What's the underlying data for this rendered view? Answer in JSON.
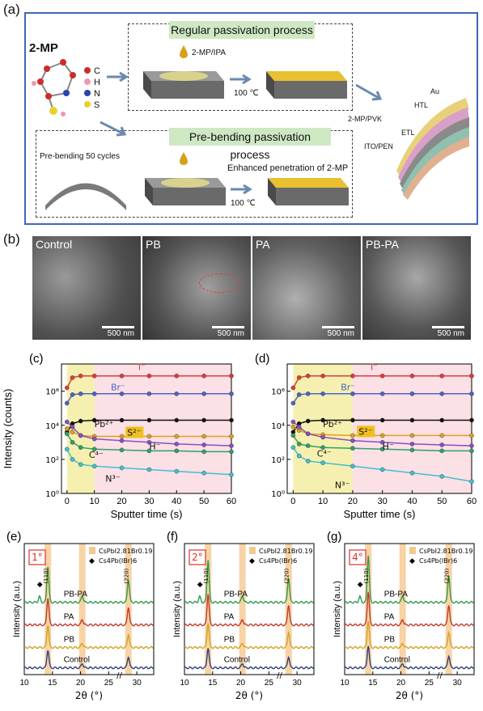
{
  "panel_a": {
    "label": "(a)",
    "molecule_name": "2-MP",
    "legend": [
      "C",
      "H",
      "N",
      "S"
    ],
    "regular_title": "Regular passivation process",
    "regular_drop_label": "2-MP/IPA",
    "regular_temp": "100 ℃",
    "prebend_title": "Pre-bending passivation process",
    "prebend_cycles": "Pre-bending 50 cycles",
    "prebend_temp": "100 ℃",
    "prebend_note": "Enhanced penetration of 2-MP",
    "device_layers": [
      "Au",
      "HTL",
      "2-MP/PVK",
      "ETL",
      "ITO/PEN"
    ]
  },
  "panel_b": {
    "label": "(b)",
    "images": [
      {
        "name": "Control",
        "scale": "500 nm"
      },
      {
        "name": "PB",
        "scale": "500 nm"
      },
      {
        "name": "PA",
        "scale": "500 nm"
      },
      {
        "name": "PB-PA",
        "scale": "500 nm"
      }
    ]
  },
  "chart_data": [
    {
      "panel": "(c)",
      "type": "scatter",
      "xlabel": "Sputter time (s)",
      "ylabel": "Intensity (counts)",
      "xlim": [
        -2,
        60
      ],
      "ylim_log10": [
        0,
        7.6
      ],
      "y_scale": "log",
      "x_ticks": [
        0,
        10,
        20,
        30,
        40,
        50,
        60
      ],
      "y_tick_labels": [
        "10⁰",
        "10²",
        "10⁴",
        "10⁶"
      ],
      "y_tick_values": [
        0,
        2,
        4,
        6
      ],
      "shade_yellow_end": 10,
      "series": [
        {
          "name": "I⁻",
          "color": "#e03a3a",
          "x": [
            0,
            2,
            5,
            10,
            20,
            30,
            40,
            50,
            60
          ],
          "y": [
            6.2,
            6.8,
            6.9,
            6.9,
            6.9,
            6.9,
            6.9,
            6.9,
            6.9
          ]
        },
        {
          "name": "Br⁻",
          "color": "#4a63c8",
          "x": [
            0,
            2,
            5,
            10,
            20,
            30,
            40,
            50,
            60
          ],
          "y": [
            5.3,
            5.8,
            5.85,
            5.85,
            5.85,
            5.85,
            5.85,
            5.85,
            5.85
          ]
        },
        {
          "name": "Pb²⁺",
          "color": "#111111",
          "x": [
            0,
            2,
            5,
            10,
            20,
            30,
            40,
            50,
            60
          ],
          "y": [
            3.6,
            4.1,
            4.25,
            4.3,
            4.3,
            4.3,
            4.3,
            4.3,
            4.3
          ]
        },
        {
          "name": "S²⁻",
          "color": "#e0a020",
          "x": [
            0,
            2,
            5,
            10,
            20,
            30,
            40,
            50,
            60
          ],
          "y": [
            3.8,
            3.6,
            3.4,
            3.35,
            3.35,
            3.35,
            3.35,
            3.35,
            3.35
          ]
        },
        {
          "name": "H⁻",
          "color": "#8a4fc0",
          "x": [
            0,
            2,
            5,
            10,
            20,
            30,
            40,
            50,
            60
          ],
          "y": [
            4.2,
            3.9,
            3.4,
            3.2,
            3.1,
            3.0,
            2.9,
            2.85,
            2.8
          ]
        },
        {
          "name": "C⁴⁻",
          "color": "#2fa06a",
          "x": [
            0,
            2,
            5,
            10,
            20,
            30,
            40,
            50,
            60
          ],
          "y": [
            3.5,
            3.0,
            2.7,
            2.6,
            2.55,
            2.5,
            2.5,
            2.45,
            2.45
          ]
        },
        {
          "name": "N³⁻",
          "color": "#40c0d0",
          "x": [
            0,
            2,
            5,
            10,
            20,
            30,
            40,
            50,
            60
          ],
          "y": [
            2.6,
            2.0,
            1.7,
            1.6,
            1.5,
            1.4,
            1.3,
            1.2,
            1.1
          ]
        }
      ]
    },
    {
      "panel": "(d)",
      "type": "scatter",
      "xlabel": "Sputter time (s)",
      "ylabel": "",
      "xlim": [
        -2,
        60
      ],
      "ylim_log10": [
        0,
        7.6
      ],
      "y_scale": "log",
      "x_ticks": [
        0,
        10,
        20,
        30,
        40,
        50,
        60
      ],
      "y_tick_labels": [
        "10⁰",
        "10²",
        "10⁴",
        "10⁶"
      ],
      "y_tick_values": [
        0,
        2,
        4,
        6
      ],
      "shade_yellow_end": 20,
      "series": [
        {
          "name": "I⁻",
          "color": "#e03a3a",
          "x": [
            0,
            2,
            5,
            10,
            20,
            30,
            40,
            50,
            60
          ],
          "y": [
            6.2,
            6.8,
            6.9,
            6.9,
            6.9,
            6.9,
            6.9,
            6.9,
            6.9
          ]
        },
        {
          "name": "Br⁻",
          "color": "#4a63c8",
          "x": [
            0,
            2,
            5,
            10,
            20,
            30,
            40,
            50,
            60
          ],
          "y": [
            5.3,
            5.8,
            5.85,
            5.85,
            5.85,
            5.85,
            5.85,
            5.85,
            5.85
          ]
        },
        {
          "name": "Pb²⁺",
          "color": "#111111",
          "x": [
            0,
            2,
            5,
            10,
            20,
            30,
            40,
            50,
            60
          ],
          "y": [
            3.6,
            4.1,
            4.25,
            4.3,
            4.3,
            4.3,
            4.3,
            4.3,
            4.3
          ]
        },
        {
          "name": "S²⁻",
          "color": "#e0a020",
          "x": [
            0,
            2,
            5,
            10,
            20,
            30,
            40,
            50,
            60
          ],
          "y": [
            3.9,
            3.7,
            3.5,
            3.45,
            3.4,
            3.4,
            3.4,
            3.4,
            3.4
          ]
        },
        {
          "name": "H⁻",
          "color": "#8a4fc0",
          "x": [
            0,
            2,
            5,
            10,
            20,
            30,
            40,
            50,
            60
          ],
          "y": [
            4.2,
            3.9,
            3.5,
            3.3,
            3.1,
            3.0,
            2.9,
            2.85,
            2.8
          ]
        },
        {
          "name": "C⁴⁻",
          "color": "#2fa06a",
          "x": [
            0,
            2,
            5,
            10,
            20,
            30,
            40,
            50,
            60
          ],
          "y": [
            3.4,
            2.9,
            2.8,
            2.7,
            2.65,
            2.6,
            2.55,
            2.5,
            2.5
          ]
        },
        {
          "name": "N³⁻",
          "color": "#40c0d0",
          "x": [
            0,
            2,
            5,
            10,
            20,
            30,
            40,
            50,
            60
          ],
          "y": [
            2.7,
            2.2,
            1.9,
            1.8,
            1.6,
            1.4,
            1.2,
            1.0,
            0.7
          ]
        }
      ]
    },
    {
      "panel": "(e)",
      "type": "line",
      "angle": "1°",
      "xlabel": "2θ (°)",
      "ylabel": "Intensity (a.u.)",
      "xlim": [
        10,
        33
      ],
      "x_ticks": [
        10,
        15,
        20,
        25,
        30
      ],
      "legend": [
        "CsPbI2.81Br0.19",
        "Cs4Pb(IBr)6"
      ],
      "peak_labels": [
        "(110)",
        "(220)"
      ],
      "peak_positions": [
        14.2,
        28.5
      ],
      "shade_positions": [
        14.2,
        20.3,
        28.5
      ],
      "diamond_x": 12.7,
      "series": [
        {
          "name": "PB-PA",
          "color": "#2f9a4a",
          "offset": 3.2,
          "peaks": [
            [
              14.2,
              1.6
            ],
            [
              20.3,
              0.3
            ],
            [
              28.5,
              1.0
            ],
            [
              12.7,
              0.25
            ]
          ]
        },
        {
          "name": "PA",
          "color": "#c0392b",
          "offset": 2.2,
          "peaks": [
            [
              14.2,
              1.2
            ],
            [
              20.3,
              0.25
            ],
            [
              28.5,
              0.8
            ]
          ]
        },
        {
          "name": "PB",
          "color": "#d6a020",
          "offset": 1.2,
          "peaks": [
            [
              14.2,
              1.0
            ],
            [
              20.3,
              0.2
            ],
            [
              28.5,
              0.6
            ]
          ]
        },
        {
          "name": "Control",
          "color": "#2c3e7a",
          "offset": 0.3,
          "peaks": [
            [
              14.2,
              0.8
            ],
            [
              20.3,
              0.2
            ],
            [
              28.5,
              0.5
            ]
          ]
        }
      ]
    },
    {
      "panel": "(f)",
      "type": "line",
      "angle": "2°",
      "xlabel": "2θ (°)",
      "ylabel": "Intensity (a.u.)",
      "xlim": [
        10,
        33
      ],
      "x_ticks": [
        10,
        15,
        20,
        25,
        30
      ],
      "legend": [
        "CsPbI2.81Br0.19",
        "Cs4Pb(IBr)6"
      ],
      "peak_labels": [
        "(110)",
        "(220)"
      ],
      "peak_positions": [
        14.2,
        28.5
      ],
      "shade_positions": [
        14.2,
        20.3,
        28.5
      ],
      "diamond_x": 12.7,
      "series": [
        {
          "name": "PB-PA",
          "color": "#2f9a4a",
          "offset": 3.2,
          "peaks": [
            [
              14.2,
              1.9
            ],
            [
              20.3,
              0.3
            ],
            [
              28.5,
              1.1
            ],
            [
              12.7,
              0.25
            ]
          ]
        },
        {
          "name": "PA",
          "color": "#c0392b",
          "offset": 2.2,
          "peaks": [
            [
              14.2,
              1.4
            ],
            [
              20.3,
              0.25
            ],
            [
              28.5,
              0.9
            ]
          ]
        },
        {
          "name": "PB",
          "color": "#d6a020",
          "offset": 1.2,
          "peaks": [
            [
              14.2,
              1.1
            ],
            [
              20.3,
              0.2
            ],
            [
              28.5,
              0.7
            ]
          ]
        },
        {
          "name": "Control",
          "color": "#2c3e7a",
          "offset": 0.3,
          "peaks": [
            [
              14.2,
              0.9
            ],
            [
              20.3,
              0.2
            ],
            [
              28.5,
              0.5
            ]
          ]
        }
      ]
    },
    {
      "panel": "(g)",
      "type": "line",
      "angle": "4°",
      "xlabel": "2θ (°)",
      "ylabel": "Intensity (a.u.)",
      "xlim": [
        10,
        33
      ],
      "x_ticks": [
        10,
        15,
        20,
        25,
        30
      ],
      "legend": [
        "CsPbI2.81Br0.19",
        "Cs4Pb(IBr)6"
      ],
      "peak_labels": [
        "(110)",
        "(220)"
      ],
      "peak_positions": [
        14.2,
        28.5
      ],
      "shade_positions": [
        14.2,
        20.3,
        28.5
      ],
      "diamond_x": 12.7,
      "series": [
        {
          "name": "PB-PA",
          "color": "#2f9a4a",
          "offset": 3.2,
          "peaks": [
            [
              14.2,
              2.1
            ],
            [
              20.3,
              0.3
            ],
            [
              28.5,
              1.2
            ],
            [
              12.7,
              0.25
            ]
          ]
        },
        {
          "name": "PA",
          "color": "#c0392b",
          "offset": 2.2,
          "peaks": [
            [
              14.2,
              1.5
            ],
            [
              20.3,
              0.25
            ],
            [
              28.5,
              0.9
            ]
          ]
        },
        {
          "name": "PB",
          "color": "#d6a020",
          "offset": 1.2,
          "peaks": [
            [
              14.2,
              1.2
            ],
            [
              20.3,
              0.2
            ],
            [
              28.5,
              0.7
            ]
          ]
        },
        {
          "name": "Control",
          "color": "#2c3e7a",
          "offset": 0.3,
          "peaks": [
            [
              14.2,
              1.0
            ],
            [
              20.3,
              0.2
            ],
            [
              28.5,
              0.55
            ]
          ]
        }
      ]
    }
  ]
}
